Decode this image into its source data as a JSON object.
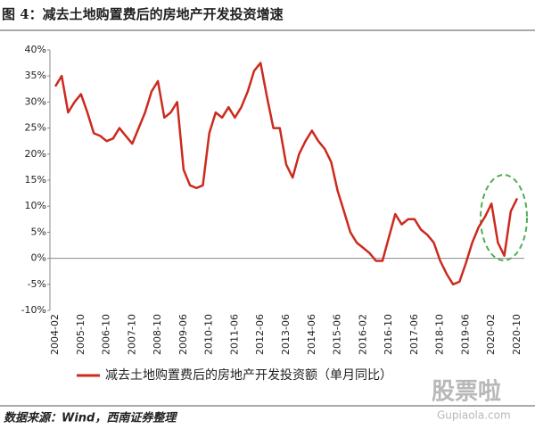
{
  "chart_data": {
    "type": "line",
    "title": "图 4：减去土地购置费后的房地产开发投资增速",
    "source": "数据来源：Wind，西南证券整理",
    "watermark": "股票啦",
    "watermark_url": "Gupiaola.com",
    "categories": [
      "2004-02",
      null,
      null,
      null,
      "2005-10",
      null,
      null,
      null,
      "2006-10",
      null,
      null,
      null,
      "2007-10",
      null,
      null,
      null,
      "2008-10",
      null,
      null,
      null,
      "2009-06",
      null,
      null,
      null,
      "2010-10",
      null,
      null,
      null,
      "2011-06",
      null,
      null,
      null,
      "2012-06",
      null,
      null,
      null,
      "2013-06",
      null,
      null,
      null,
      "2014-06",
      null,
      null,
      null,
      "2015-06",
      null,
      null,
      null,
      "2016-02",
      null,
      null,
      null,
      "2016-10",
      null,
      null,
      null,
      "2017-06",
      null,
      null,
      null,
      "2018-10",
      null,
      null,
      null,
      "2019-06",
      null,
      null,
      null,
      "2020-02",
      null,
      null,
      null,
      "2020-10"
    ],
    "series": [
      {
        "name": "减去土地购置费后的房地产开发投资额（单月同比）",
        "color": "#cc2a1e",
        "values": [
          33,
          35,
          28,
          30,
          31.5,
          28,
          24,
          23.5,
          22.5,
          23,
          25,
          23.5,
          22,
          25,
          28,
          32,
          34,
          27,
          28,
          30,
          17,
          14,
          13.5,
          14,
          24,
          28,
          27,
          29,
          27,
          29,
          32,
          36,
          37.5,
          31,
          25,
          25,
          18,
          15.5,
          20,
          22.5,
          24.5,
          22.5,
          21,
          18.5,
          13,
          9,
          5,
          3,
          2,
          1,
          -0.5,
          -0.5,
          4,
          8.5,
          6.5,
          7.5,
          7.5,
          5.5,
          4.5,
          3,
          -0.5,
          -3,
          -5,
          -4.5,
          -1,
          3,
          6,
          8,
          10.5,
          3,
          0.5,
          9,
          11.5
        ]
      }
    ],
    "ylim": [
      -10,
      40
    ],
    "yticks": [
      {
        "value": -10,
        "label": "-10%"
      },
      {
        "value": -5,
        "label": "-5%"
      },
      {
        "value": 0,
        "label": "0%"
      },
      {
        "value": 5,
        "label": "5%"
      },
      {
        "value": 10,
        "label": "10%"
      },
      {
        "value": 15,
        "label": "15%"
      },
      {
        "value": 20,
        "label": "20%"
      },
      {
        "value": 25,
        "label": "25%"
      },
      {
        "value": 30,
        "label": "30%"
      },
      {
        "value": 35,
        "label": "35%"
      },
      {
        "value": 40,
        "label": "40%"
      }
    ]
  }
}
